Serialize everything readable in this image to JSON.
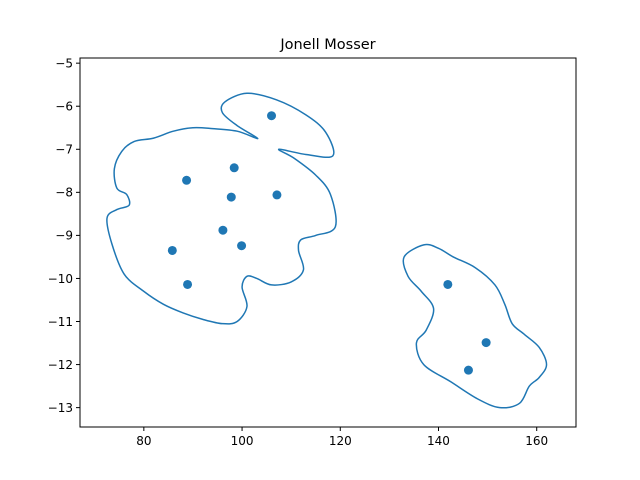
{
  "chart_data": {
    "type": "scatter",
    "title": "Jonell Mosser",
    "xlabel": "",
    "ylabel": "",
    "xlim": [
      67,
      168
    ],
    "ylim": [
      -13.45,
      -4.88
    ],
    "xticks": [
      80,
      100,
      120,
      140,
      160
    ],
    "xtick_labels": [
      "80",
      "100",
      "120",
      "140",
      "160"
    ],
    "yticks": [
      -13,
      -12,
      -11,
      -10,
      -9,
      -8,
      -7,
      -6,
      -5
    ],
    "ytick_labels": [
      "−13",
      "−12",
      "−11",
      "−10",
      "−9",
      "−8",
      "−7",
      "−6",
      "−5"
    ],
    "grid": false,
    "legend": false,
    "colors": {
      "marker": "#1f77b4",
      "outline": "#1f77b4"
    },
    "series": [
      {
        "points": [
          {
            "x": 106.0,
            "y": -6.22
          },
          {
            "x": 98.4,
            "y": -7.43
          },
          {
            "x": 88.7,
            "y": -7.72
          },
          {
            "x": 97.8,
            "y": -8.11
          },
          {
            "x": 107.1,
            "y": -8.06
          },
          {
            "x": 96.1,
            "y": -8.88
          },
          {
            "x": 99.9,
            "y": -9.24
          },
          {
            "x": 85.8,
            "y": -9.35
          },
          {
            "x": 88.9,
            "y": -10.14
          },
          {
            "x": 141.9,
            "y": -10.14
          },
          {
            "x": 149.7,
            "y": -11.49
          },
          {
            "x": 146.1,
            "y": -12.13
          }
        ]
      }
    ],
    "outlines": [
      {
        "points": [
          [
            103.2,
            -6.75
          ],
          [
            99.0,
            -6.58
          ],
          [
            94.0,
            -6.52
          ],
          [
            90.0,
            -6.5
          ],
          [
            86.0,
            -6.58
          ],
          [
            82.0,
            -6.74
          ],
          [
            78.0,
            -6.82
          ],
          [
            75.5,
            -7.05
          ],
          [
            74.0,
            -7.45
          ],
          [
            74.5,
            -7.9
          ],
          [
            76.5,
            -8.05
          ],
          [
            77.0,
            -8.3
          ],
          [
            74.5,
            -8.4
          ],
          [
            72.5,
            -8.6
          ],
          [
            73.5,
            -9.2
          ],
          [
            76.0,
            -9.9
          ],
          [
            80.0,
            -10.3
          ],
          [
            84.0,
            -10.6
          ],
          [
            88.0,
            -10.8
          ],
          [
            92.0,
            -10.95
          ],
          [
            96.0,
            -11.05
          ],
          [
            99.0,
            -11.0
          ],
          [
            101.0,
            -10.65
          ],
          [
            100.0,
            -10.2
          ],
          [
            101.0,
            -9.95
          ],
          [
            103.0,
            -10.0
          ],
          [
            106.0,
            -10.15
          ],
          [
            110.0,
            -10.08
          ],
          [
            112.5,
            -9.8
          ],
          [
            111.5,
            -9.35
          ],
          [
            112.0,
            -9.1
          ],
          [
            115.0,
            -9.0
          ],
          [
            119.0,
            -8.8
          ],
          [
            118.0,
            -8.05
          ],
          [
            115.0,
            -7.6
          ],
          [
            110.5,
            -7.2
          ],
          [
            107.5,
            -7.0
          ],
          [
            113.0,
            -7.12
          ],
          [
            118.5,
            -7.15
          ],
          [
            117.0,
            -6.6
          ],
          [
            113.0,
            -6.2
          ],
          [
            107.0,
            -5.85
          ],
          [
            101.0,
            -5.7
          ],
          [
            96.5,
            -5.9
          ],
          [
            96.0,
            -6.15
          ],
          [
            99.0,
            -6.45
          ]
        ]
      },
      {
        "points": [
          [
            137.0,
            -9.22
          ],
          [
            133.0,
            -9.5
          ],
          [
            133.8,
            -9.95
          ],
          [
            136.5,
            -10.3
          ],
          [
            139.0,
            -10.7
          ],
          [
            137.5,
            -11.2
          ],
          [
            135.5,
            -11.5
          ],
          [
            137.0,
            -12.0
          ],
          [
            142.5,
            -12.4
          ],
          [
            148.0,
            -12.8
          ],
          [
            152.5,
            -13.0
          ],
          [
            156.5,
            -12.9
          ],
          [
            158.5,
            -12.5
          ],
          [
            160.5,
            -12.3
          ],
          [
            162.0,
            -12.0
          ],
          [
            160.5,
            -11.6
          ],
          [
            157.5,
            -11.3
          ],
          [
            155.0,
            -11.05
          ],
          [
            153.5,
            -10.6
          ],
          [
            151.5,
            -10.15
          ],
          [
            147.5,
            -9.75
          ],
          [
            143.0,
            -9.5
          ],
          [
            140.0,
            -9.3
          ]
        ]
      }
    ]
  }
}
